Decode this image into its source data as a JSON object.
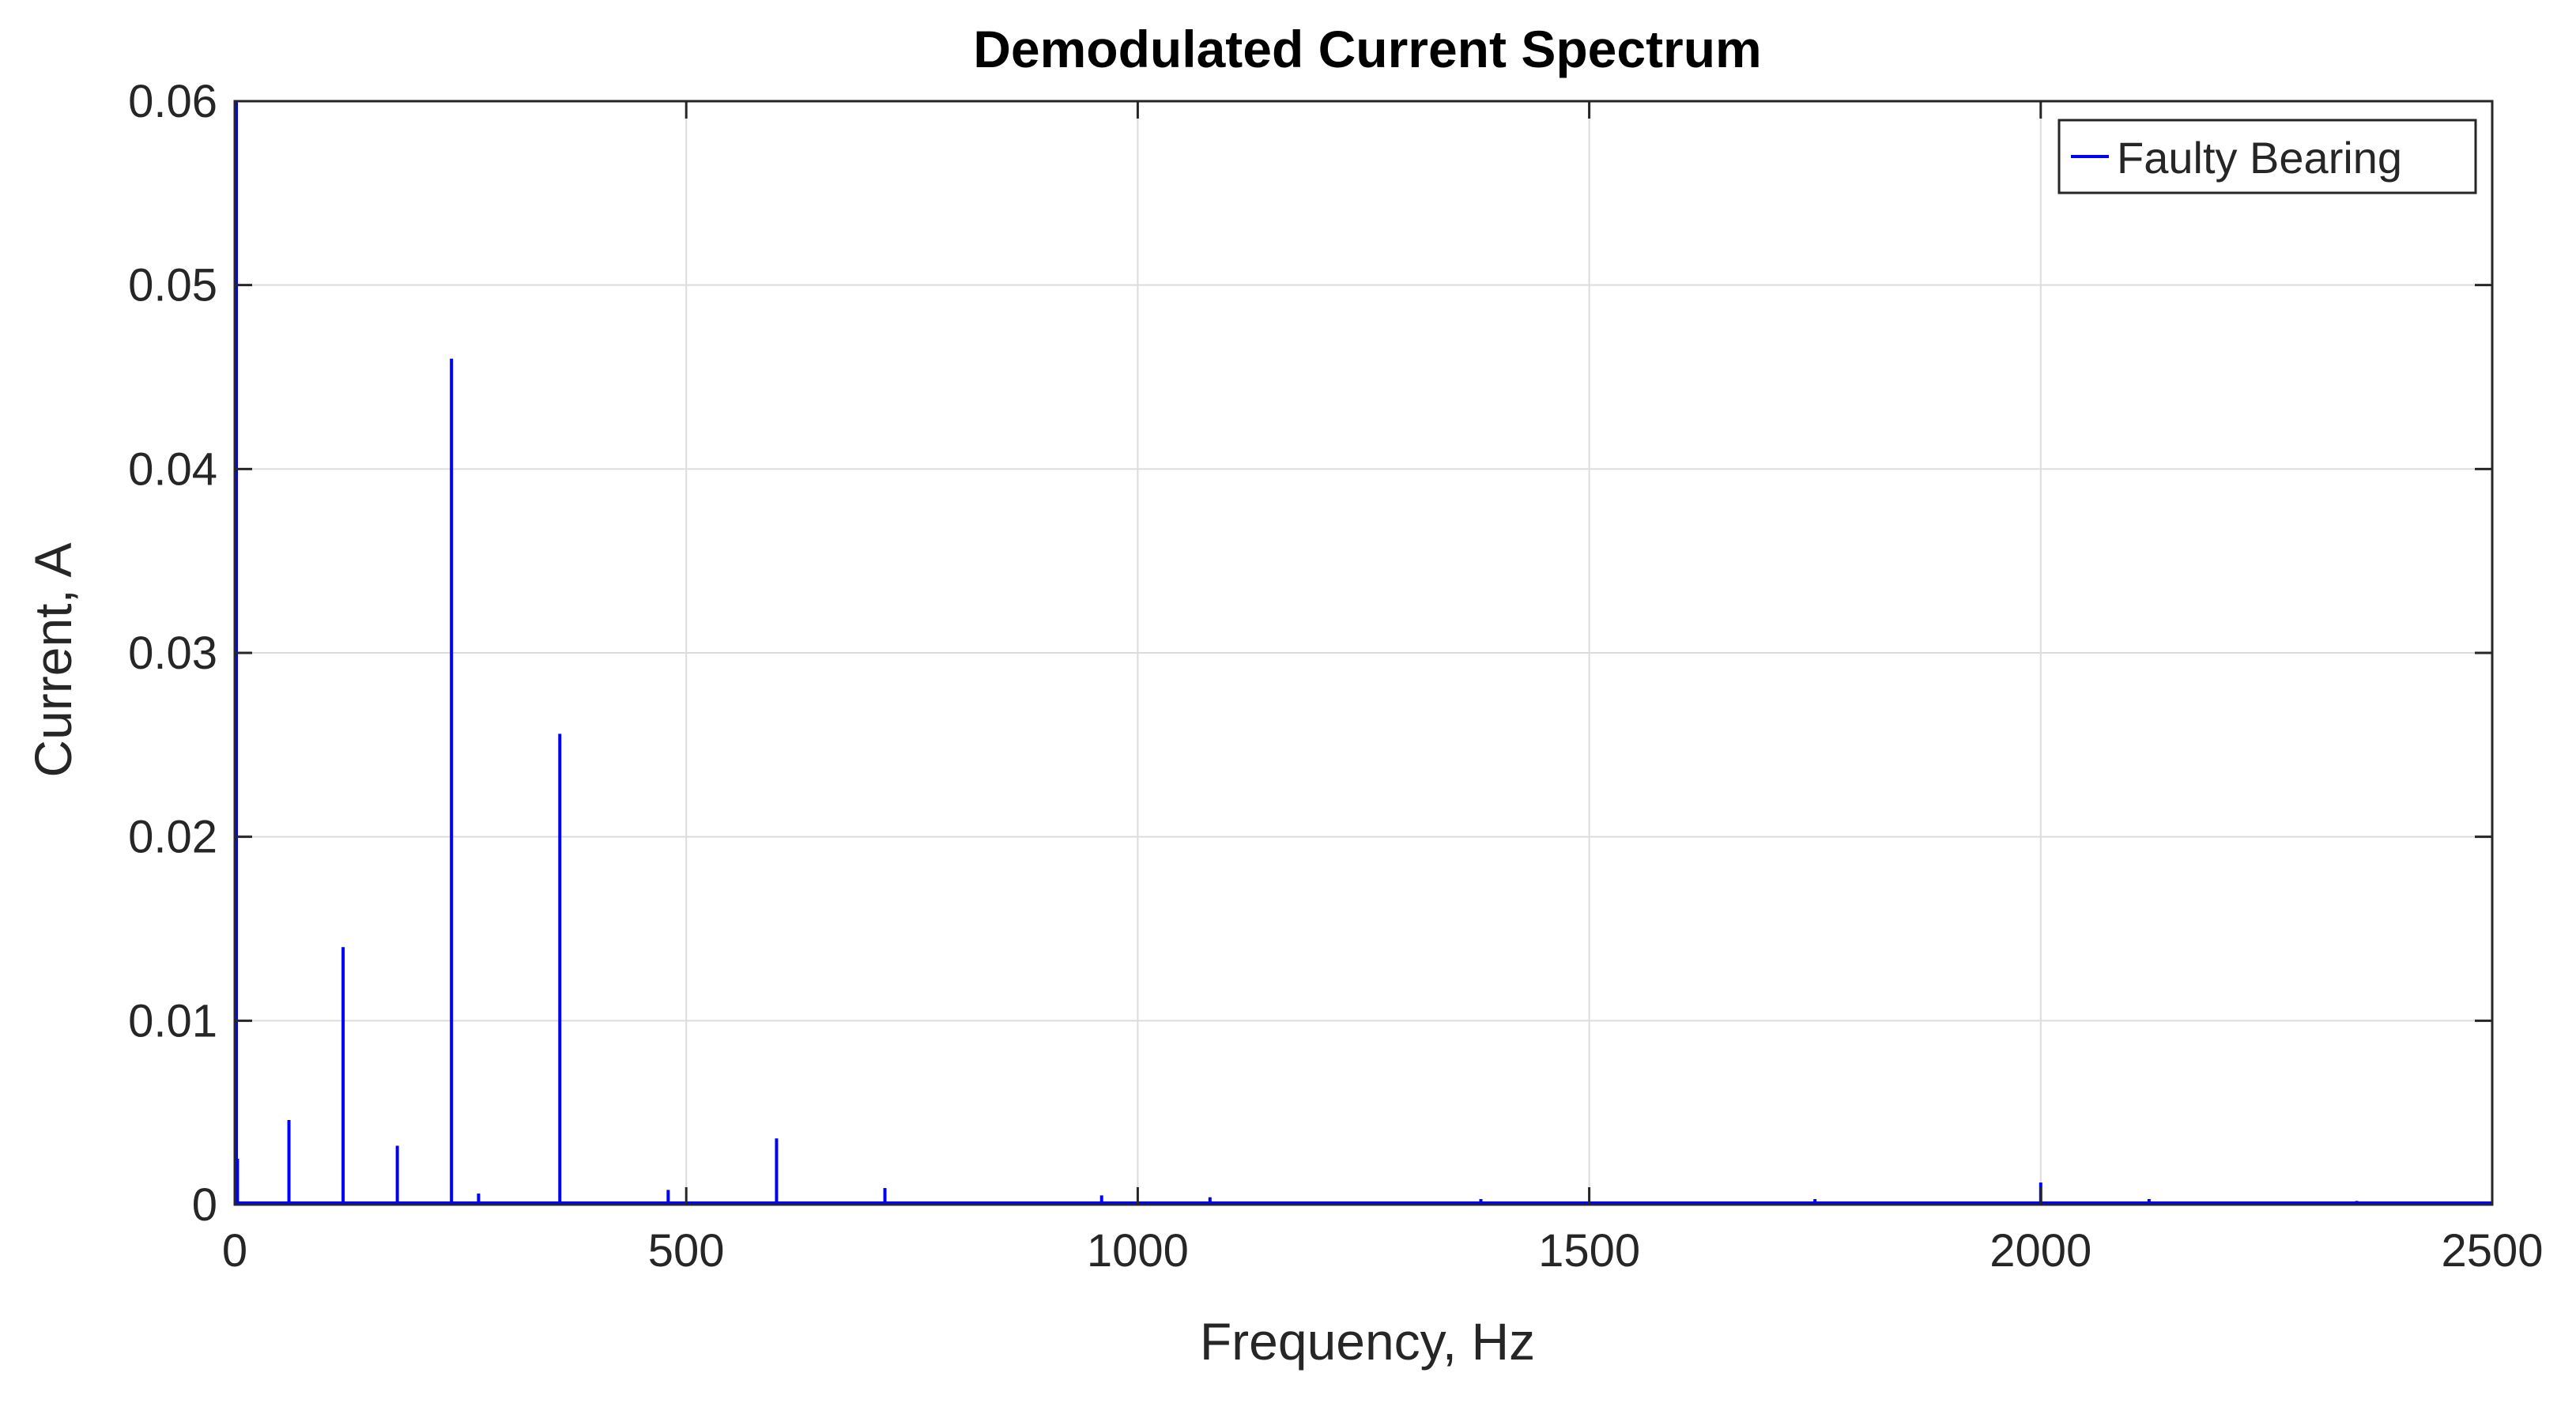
{
  "chart_data": {
    "type": "line",
    "title": "Demodulated Current Spectrum",
    "xlabel": "Frequency, Hz",
    "ylabel": "Current, A",
    "xlim": [
      0,
      2500
    ],
    "ylim": [
      0,
      0.06
    ],
    "xticks": [
      0,
      500,
      1000,
      1500,
      2000,
      2500
    ],
    "xtick_labels": [
      "0",
      "500",
      "1000",
      "1500",
      "2000",
      "2500"
    ],
    "yticks": [
      0,
      0.01,
      0.02,
      0.03,
      0.04,
      0.05,
      0.06
    ],
    "ytick_labels": [
      "0",
      "0.01",
      "0.02",
      "0.03",
      "0.04",
      "0.05",
      "0.06"
    ],
    "grid": true,
    "legend_position": "top-right",
    "series": [
      {
        "name": "Faulty Bearing",
        "color": "#0000ff",
        "peaks": [
          {
            "x": 0,
            "y": 0.06
          },
          {
            "x": 3,
            "y": 0.0025
          },
          {
            "x": 60,
            "y": 0.0046
          },
          {
            "x": 120,
            "y": 0.014
          },
          {
            "x": 180,
            "y": 0.0032
          },
          {
            "x": 240,
            "y": 0.046
          },
          {
            "x": 270,
            "y": 0.0006
          },
          {
            "x": 360,
            "y": 0.0256
          },
          {
            "x": 480,
            "y": 0.0008
          },
          {
            "x": 600,
            "y": 0.0036
          },
          {
            "x": 720,
            "y": 0.0009
          },
          {
            "x": 960,
            "y": 0.0005
          },
          {
            "x": 1080,
            "y": 0.0004
          },
          {
            "x": 1380,
            "y": 0.0003
          },
          {
            "x": 1750,
            "y": 0.0003
          },
          {
            "x": 2000,
            "y": 0.0012
          },
          {
            "x": 2120,
            "y": 0.0003
          },
          {
            "x": 2350,
            "y": 0.0002
          }
        ]
      }
    ]
  }
}
